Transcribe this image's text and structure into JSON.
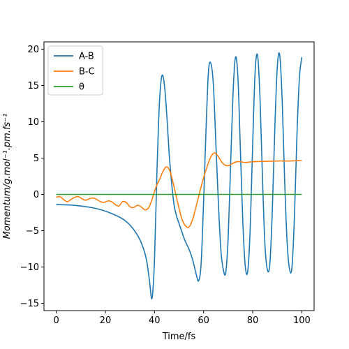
{
  "chart_data": {
    "type": "line",
    "xlabel": "Time/fs",
    "ylabel": "Momentum/g.mol⁻¹.pm.fs⁻¹",
    "xlim": [
      -5,
      105
    ],
    "ylim": [
      -16,
      21
    ],
    "xticks": [
      0,
      20,
      40,
      60,
      80,
      100
    ],
    "yticks": [
      -15,
      -10,
      -5,
      0,
      5,
      10,
      15,
      20
    ],
    "legend_position": "top-left",
    "grid": false,
    "series": [
      {
        "name": "A-B",
        "color": "#1f77b4",
        "x": [
          0,
          5,
          10,
          15,
          20,
          25,
          28,
          31,
          34,
          36,
          37,
          38,
          39,
          40,
          41,
          42,
          43,
          44,
          45,
          46,
          47,
          48,
          49,
          50,
          51,
          52,
          53,
          54,
          55,
          56,
          57,
          58,
          59,
          60,
          61,
          62,
          63,
          64,
          65,
          66,
          67,
          68,
          69,
          70,
          71,
          72,
          73,
          74,
          75,
          76,
          77,
          78,
          79,
          80,
          81,
          82,
          83,
          84,
          85,
          86,
          87,
          88,
          89,
          90,
          91,
          92,
          93,
          94,
          95,
          96,
          97,
          98,
          99,
          100
        ],
        "y": [
          -1.4,
          -1.45,
          -1.6,
          -1.85,
          -2.3,
          -3.0,
          -3.6,
          -4.6,
          -6.2,
          -8.0,
          -9.5,
          -12.0,
          -14.3,
          -9.0,
          3.0,
          12.5,
          16.3,
          15.2,
          11.0,
          5.5,
          1.5,
          -1.5,
          -3.0,
          -4.0,
          -5.0,
          -6.0,
          -6.8,
          -7.5,
          -8.4,
          -9.6,
          -11.0,
          -11.9,
          -9.5,
          -1.0,
          9.0,
          17.0,
          18.0,
          15.0,
          7.0,
          -1.0,
          -7.5,
          -10.3,
          -10.8,
          -6.0,
          4.0,
          14.0,
          18.9,
          16.0,
          6.0,
          -4.0,
          -10.0,
          -10.5,
          -4.5,
          7.0,
          17.0,
          19.1,
          13.0,
          2.0,
          -7.0,
          -10.4,
          -9.5,
          -2.0,
          9.0,
          17.5,
          19.2,
          13.0,
          2.0,
          -6.5,
          -10.3,
          -10.0,
          -3.0,
          8.0,
          16.0,
          18.9
        ]
      },
      {
        "name": "B-C",
        "color": "#ff7f0e",
        "x": [
          0,
          1.5,
          3,
          4.5,
          6,
          7.5,
          9,
          10.5,
          12,
          13.5,
          15,
          16.5,
          18,
          19.5,
          21,
          22.5,
          24,
          25.5,
          27,
          28.5,
          30,
          31.5,
          33,
          34.5,
          36,
          37.5,
          39,
          40.5,
          42,
          43.5,
          45,
          46.5,
          48,
          49.5,
          51,
          52.5,
          54,
          55.5,
          57,
          58.5,
          60,
          61.5,
          63,
          64.5,
          66,
          67.5,
          69,
          70.5,
          72,
          73.5,
          75,
          77,
          80,
          85,
          90,
          95,
          100
        ],
        "y": [
          -0.4,
          -0.3,
          -0.7,
          -1.0,
          -0.7,
          -0.4,
          -0.3,
          -0.6,
          -0.8,
          -0.6,
          -0.5,
          -0.7,
          -1.0,
          -1.1,
          -0.9,
          -1.0,
          -1.4,
          -1.6,
          -1.0,
          -1.1,
          -1.7,
          -1.8,
          -1.5,
          -1.7,
          -2.1,
          -1.9,
          -0.7,
          0.9,
          2.0,
          3.2,
          3.8,
          3.0,
          1.0,
          -1.2,
          -3.2,
          -4.3,
          -4.5,
          -3.5,
          -1.6,
          0.4,
          2.3,
          3.9,
          5.2,
          5.7,
          5.2,
          4.4,
          4.0,
          4.0,
          4.3,
          4.5,
          4.5,
          4.4,
          4.5,
          4.55,
          4.6,
          4.6,
          4.65
        ]
      },
      {
        "name": "θ",
        "color": "#2ca02c",
        "x": [
          0,
          100
        ],
        "y": [
          0,
          0
        ]
      }
    ]
  }
}
